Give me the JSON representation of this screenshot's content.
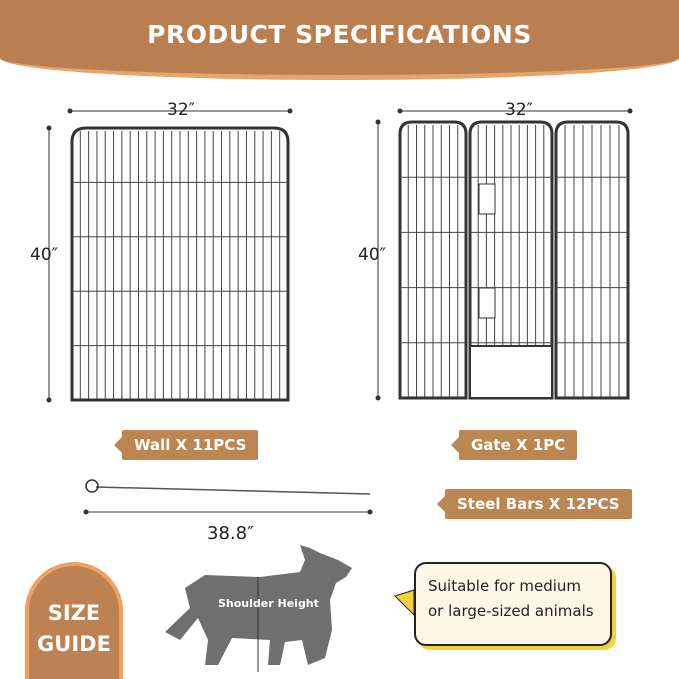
{
  "header": {
    "title": "PRODUCT SPECIFICATIONS"
  },
  "wall": {
    "width": "32″",
    "height": "40″",
    "label": "Wall X 11PCS"
  },
  "gate": {
    "width": "32″",
    "height": "40″",
    "label": "Gate X 1PC"
  },
  "bars": {
    "length": "38.8″",
    "label": "Steel Bars X 12PCS"
  },
  "size_guide": {
    "line1": "SIZE",
    "line2": "GUIDE",
    "shoulder_label": "Shoulder Height"
  },
  "bubble": {
    "line1": "Suitable for medium",
    "line2": "or large-sized animals"
  },
  "colors": {
    "header": "#B97F50",
    "tag": "#BC8652",
    "accent_orange": "#E8A56B",
    "bubble_shadow": "#F2D23A"
  }
}
